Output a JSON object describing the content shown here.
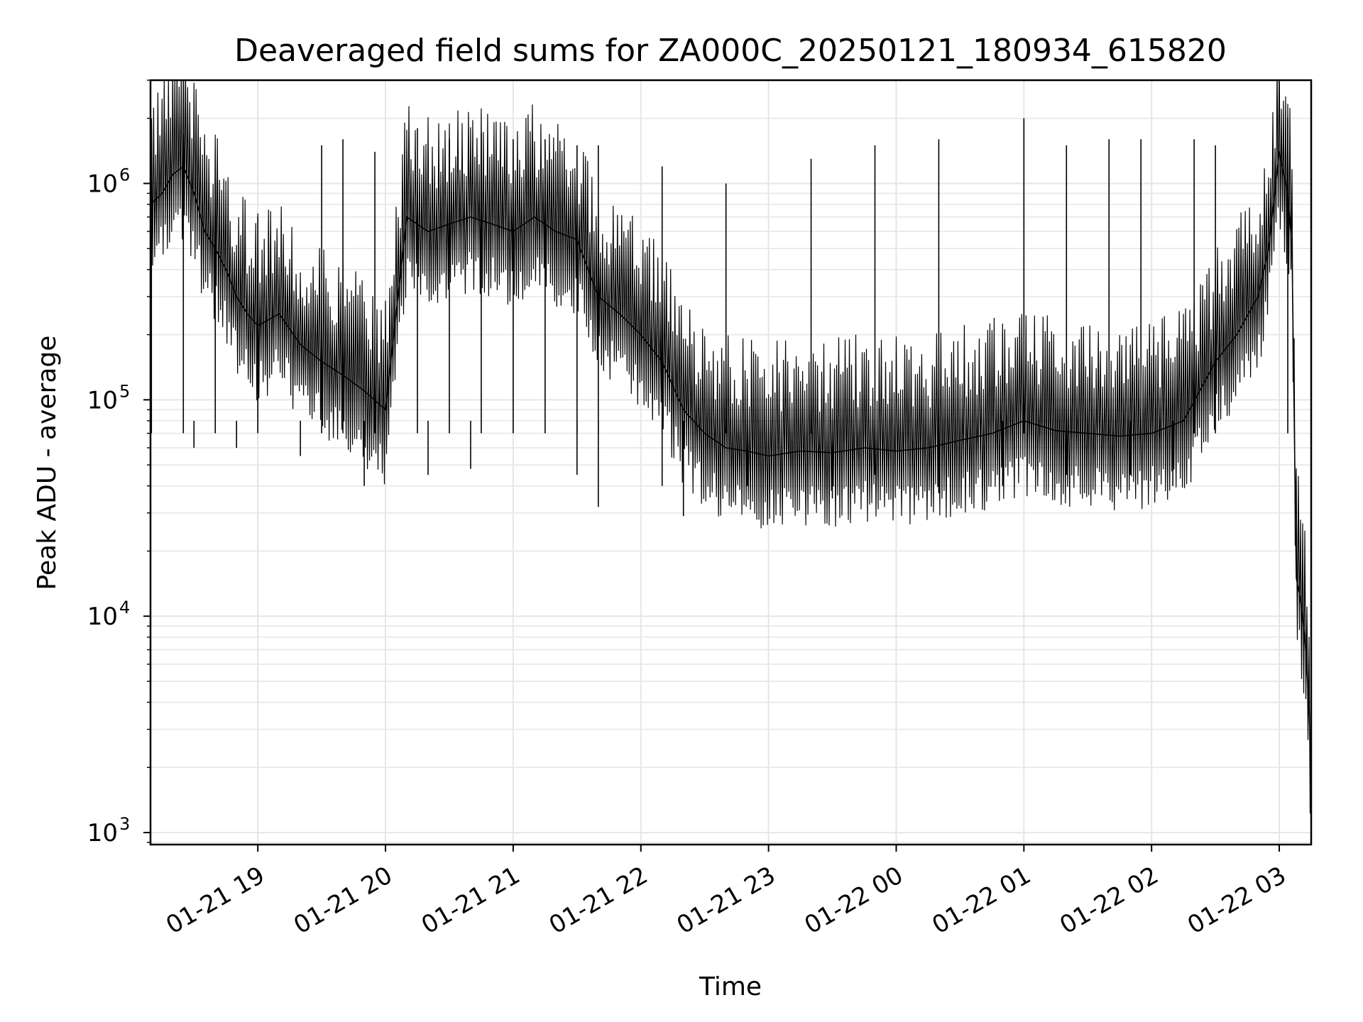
{
  "chart_data": {
    "type": "line",
    "title": "Deaveraged field sums for ZA000C_20250121_180934_615820",
    "xlabel": "Time",
    "ylabel": "Peak ADU - average",
    "yscale": "log",
    "grid": true,
    "xlim": [
      "2025-01-21 18:09:34",
      "2025-01-22 03:15:00"
    ],
    "ylim": [
      880,
      3000000
    ],
    "x_tick_labels": [
      "01-21 19",
      "01-21 20",
      "01-21 21",
      "01-21 22",
      "01-21 23",
      "01-22 00",
      "01-22 01",
      "01-22 02",
      "01-22 03"
    ],
    "x_tick_values": [
      "2025-01-21 19:00",
      "2025-01-21 20:00",
      "2025-01-21 21:00",
      "2025-01-21 22:00",
      "2025-01-21 23:00",
      "2025-01-22 00:00",
      "2025-01-22 01:00",
      "2025-01-22 02:00",
      "2025-01-22 03:00"
    ],
    "y_ticks": [
      {
        "base": "10",
        "exp": "3",
        "value": 1000
      },
      {
        "base": "10",
        "exp": "4",
        "value": 10000
      },
      {
        "base": "10",
        "exp": "5",
        "value": 100000
      },
      {
        "base": "10",
        "exp": "6",
        "value": 1000000
      }
    ],
    "series": [
      {
        "color": "#000000",
        "x": [
          "2025-01-21 18:09:34",
          "2025-01-21 18:15",
          "2025-01-21 18:20",
          "2025-01-21 18:25",
          "2025-01-21 18:30",
          "2025-01-21 18:35",
          "2025-01-21 18:40",
          "2025-01-21 18:45",
          "2025-01-21 18:50",
          "2025-01-21 18:55",
          "2025-01-21 19:00",
          "2025-01-21 19:10",
          "2025-01-21 19:20",
          "2025-01-21 19:30",
          "2025-01-21 19:40",
          "2025-01-21 19:50",
          "2025-01-21 20:00",
          "2025-01-21 20:10",
          "2025-01-21 20:20",
          "2025-01-21 20:30",
          "2025-01-21 20:40",
          "2025-01-21 20:50",
          "2025-01-21 21:00",
          "2025-01-21 21:10",
          "2025-01-21 21:20",
          "2025-01-21 21:30",
          "2025-01-21 21:40",
          "2025-01-21 21:50",
          "2025-01-21 22:00",
          "2025-01-21 22:10",
          "2025-01-21 22:20",
          "2025-01-21 22:30",
          "2025-01-21 22:40",
          "2025-01-21 22:50",
          "2025-01-21 23:00",
          "2025-01-21 23:15",
          "2025-01-21 23:30",
          "2025-01-21 23:45",
          "2025-01-22 00:00",
          "2025-01-22 00:15",
          "2025-01-22 00:30",
          "2025-01-22 00:45",
          "2025-01-22 01:00",
          "2025-01-22 01:15",
          "2025-01-22 01:30",
          "2025-01-22 01:45",
          "2025-01-22 02:00",
          "2025-01-22 02:15",
          "2025-01-22 02:30",
          "2025-01-22 02:40",
          "2025-01-22 02:50",
          "2025-01-22 02:55",
          "2025-01-22 03:00",
          "2025-01-22 03:04",
          "2025-01-22 03:06",
          "2025-01-22 03:08",
          "2025-01-22 03:10",
          "2025-01-22 03:12",
          "2025-01-22 03:14",
          "2025-01-22 03:15"
        ],
        "values": [
          800000,
          900000,
          1100000,
          1200000,
          900000,
          600000,
          500000,
          400000,
          300000,
          250000,
          220000,
          250000,
          180000,
          150000,
          130000,
          110000,
          90000,
          700000,
          600000,
          650000,
          700000,
          650000,
          600000,
          700000,
          600000,
          550000,
          300000,
          250000,
          200000,
          150000,
          90000,
          70000,
          60000,
          58000,
          55000,
          58000,
          57000,
          60000,
          58000,
          60000,
          65000,
          70000,
          80000,
          72000,
          70000,
          68000,
          70000,
          80000,
          150000,
          200000,
          300000,
          500000,
          1400000,
          900000,
          500000,
          15000,
          12000,
          8000,
          4000,
          1500
        ]
      }
    ],
    "peaks": {
      "x": [
        "2025-01-21 18:10",
        "2025-01-21 18:25",
        "2025-01-21 18:40",
        "2025-01-21 19:00",
        "2025-01-21 19:30",
        "2025-01-21 19:40",
        "2025-01-21 19:55",
        "2025-01-21 20:15",
        "2025-01-21 20:30",
        "2025-01-21 20:45",
        "2025-01-21 21:00",
        "2025-01-21 21:15",
        "2025-01-21 21:30",
        "2025-01-21 21:40",
        "2025-01-21 22:10",
        "2025-01-21 22:40",
        "2025-01-21 23:20",
        "2025-01-21 23:50",
        "2025-01-22 00:20",
        "2025-01-22 01:00",
        "2025-01-22 01:20",
        "2025-01-22 01:40",
        "2025-01-22 01:55",
        "2025-01-22 02:20",
        "2025-01-22 02:30",
        "2025-01-22 03:04"
      ],
      "values": [
        1800000,
        1700000,
        1000000,
        700000,
        1500000,
        1600000,
        1400000,
        1800000,
        1600000,
        1700000,
        1600000,
        1600000,
        1500000,
        1500000,
        1200000,
        1000000,
        1300000,
        1500000,
        1600000,
        2000000,
        1500000,
        1600000,
        1600000,
        1600000,
        1500000,
        2000000
      ]
    },
    "dips": {
      "x": [
        "2025-01-21 18:30",
        "2025-01-21 18:50",
        "2025-01-21 19:20",
        "2025-01-21 19:50",
        "2025-01-21 20:20",
        "2025-01-21 20:40",
        "2025-01-21 21:30",
        "2025-01-21 21:40",
        "2025-01-21 22:10",
        "2025-01-21 22:20",
        "2025-01-21 22:50",
        "2025-01-21 23:30",
        "2025-01-21 23:50",
        "2025-01-22 00:20",
        "2025-01-22 00:50",
        "2025-01-22 01:20",
        "2025-01-22 01:50",
        "2025-01-22 02:10"
      ],
      "values": [
        60000,
        60000,
        55000,
        40000,
        45000,
        48000,
        45000,
        32000,
        40000,
        29000,
        40000,
        35000,
        45000,
        37000,
        40000,
        45000,
        45000,
        40000
      ]
    }
  }
}
